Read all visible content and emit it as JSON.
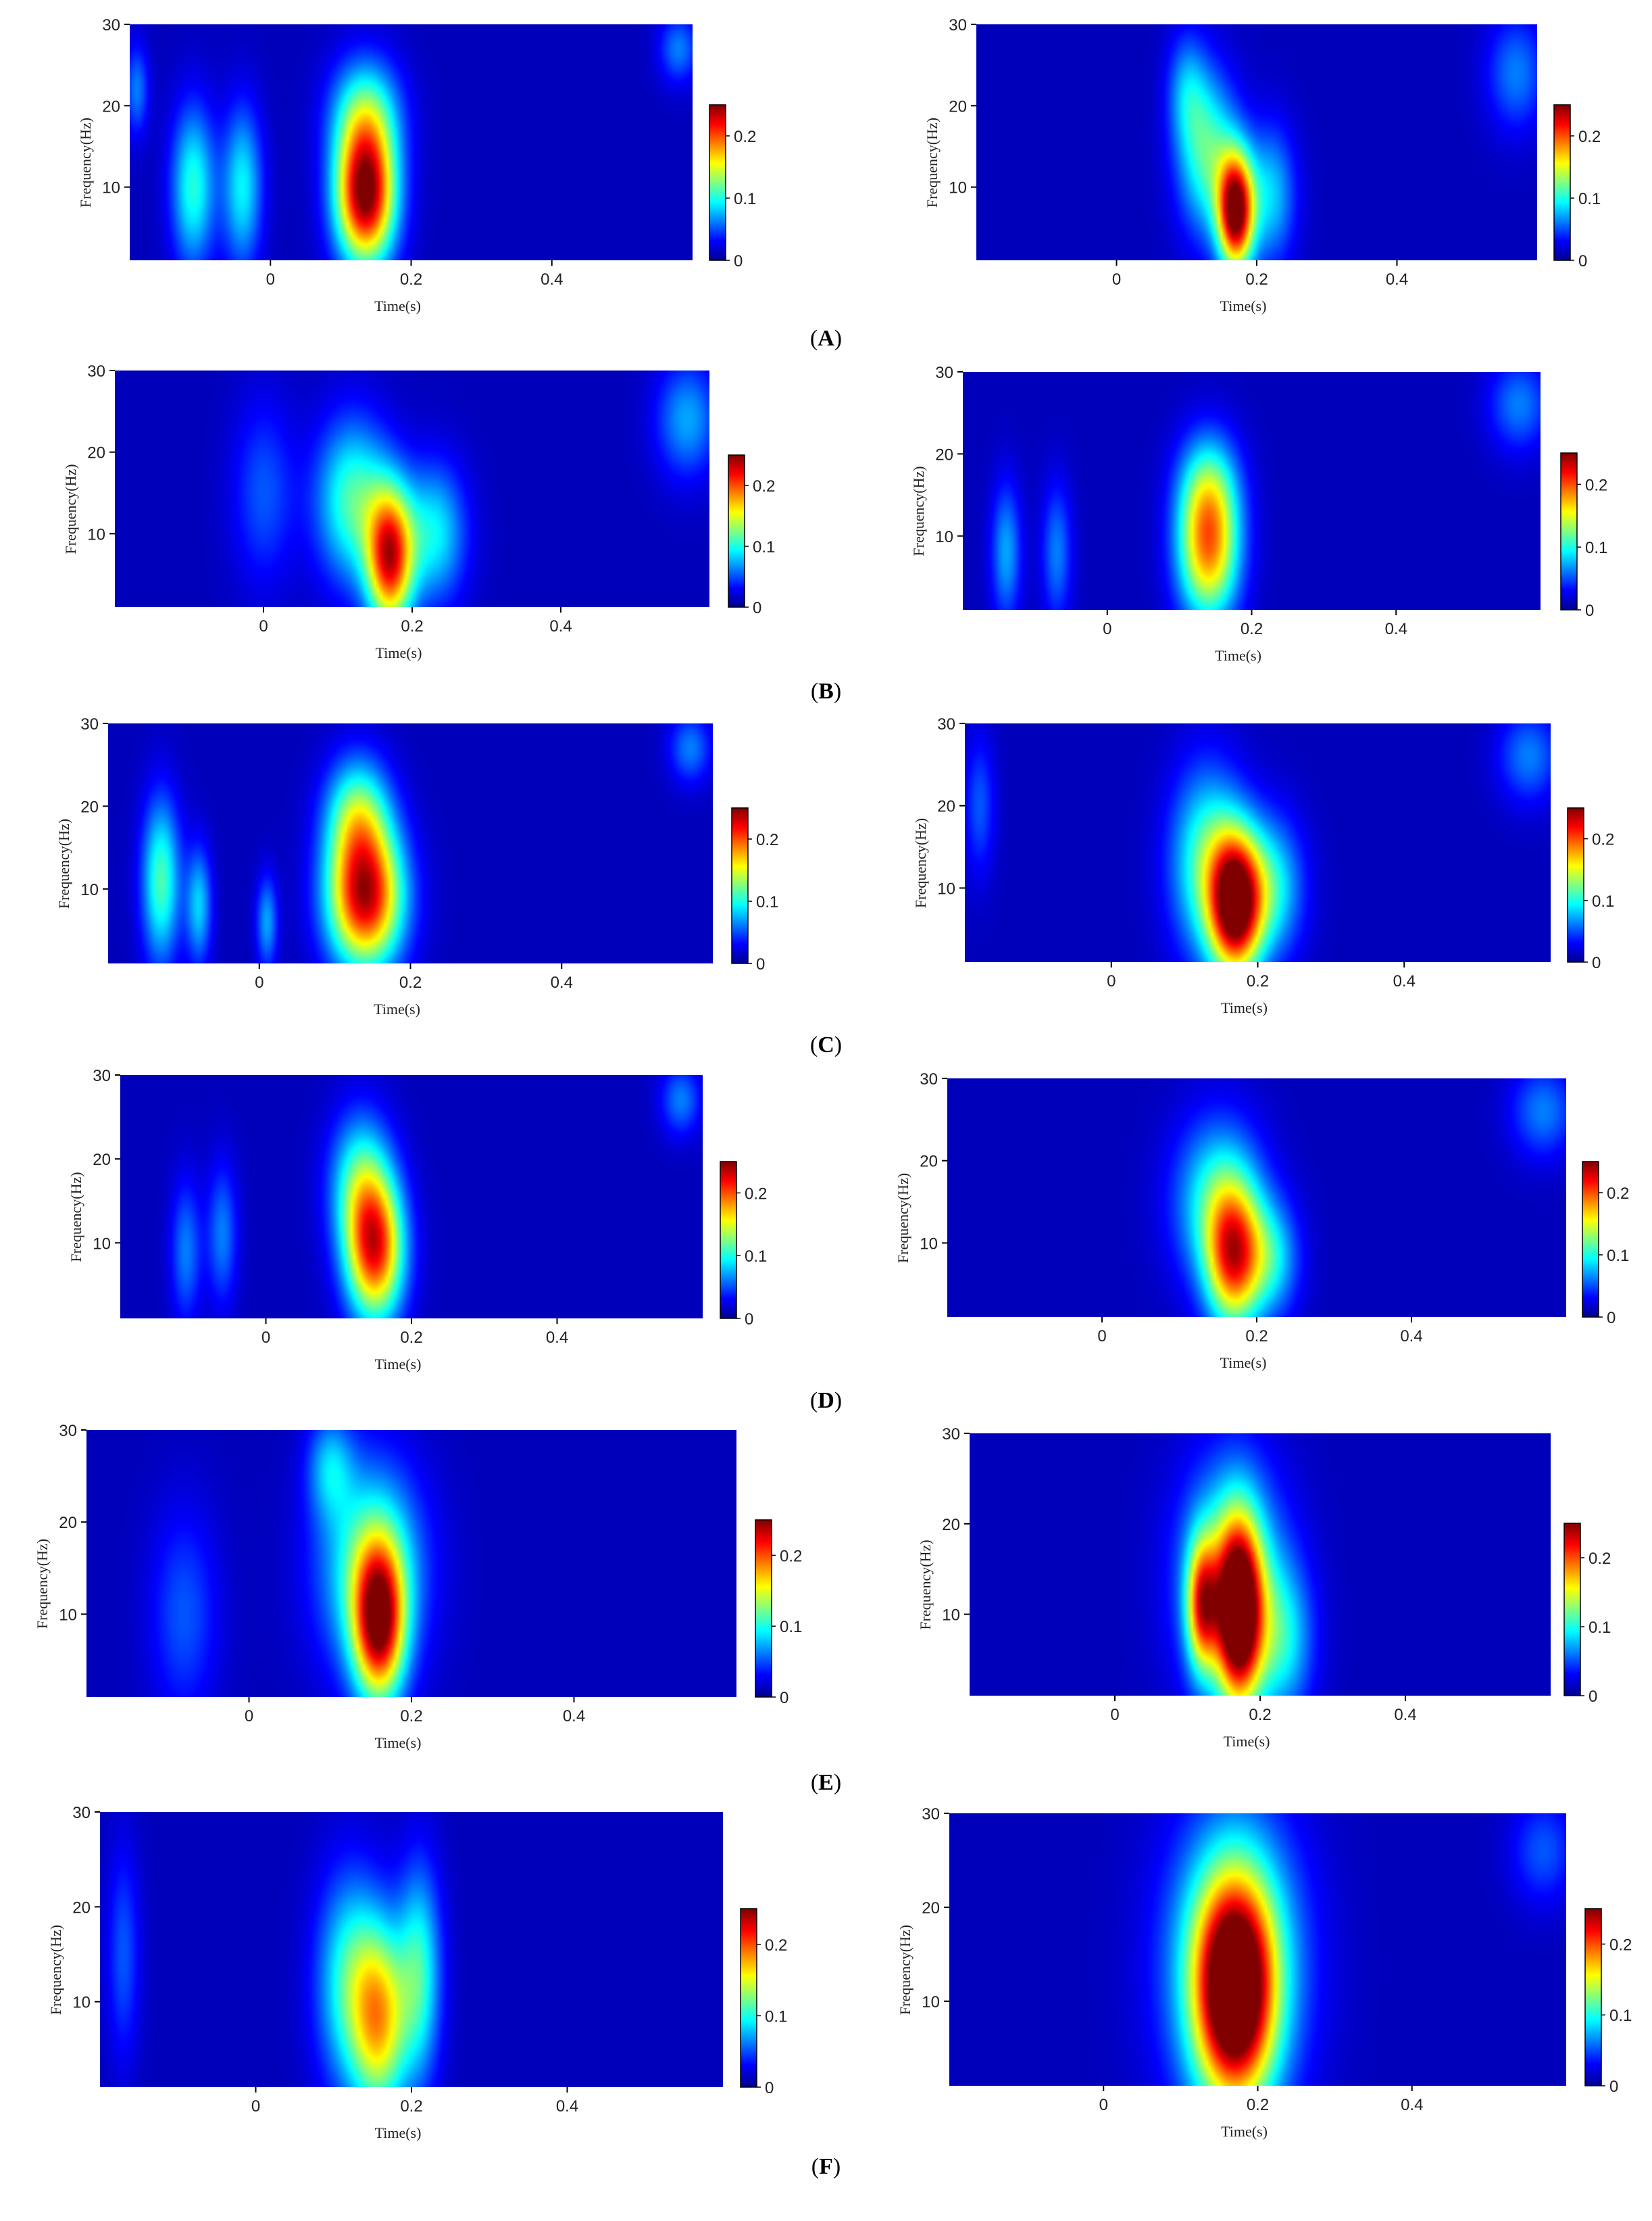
{
  "colors": {
    "background": "#ffffff",
    "colormap": [
      "#00008f",
      "#0000ff",
      "#0080ff",
      "#00ffff",
      "#80ff80",
      "#ffff00",
      "#ff8000",
      "#ff0000",
      "#800000"
    ]
  },
  "chart_data": [
    {
      "panel": "A",
      "side": "left",
      "type": "heatmap",
      "xlabel": "Time(s)",
      "ylabel": "Frequency(Hz)",
      "xticks": [
        "0",
        "0.2",
        "0.4"
      ],
      "yticks": [
        "10",
        "20",
        "30"
      ],
      "xlim": [
        -0.2,
        0.6
      ],
      "ylim": [
        1,
        30
      ],
      "colorbar": {
        "ticks": [
          "0",
          "0.1",
          "0.2"
        ],
        "range": [
          0,
          0.25
        ]
      },
      "blobs": [
        {
          "t": -0.11,
          "f": 10,
          "st": 0.022,
          "sf": 7,
          "v": 0.09
        },
        {
          "t": -0.04,
          "f": 10,
          "st": 0.02,
          "sf": 7,
          "v": 0.08
        },
        {
          "t": 0.135,
          "f": 9,
          "st": 0.03,
          "sf": 6,
          "v": 0.24
        },
        {
          "t": 0.135,
          "f": 19,
          "st": 0.035,
          "sf": 5,
          "v": 0.09
        },
        {
          "t": 0.58,
          "f": 27,
          "st": 0.02,
          "sf": 3,
          "v": 0.05
        },
        {
          "t": -0.19,
          "f": 22,
          "st": 0.012,
          "sf": 4,
          "v": 0.05
        }
      ]
    },
    {
      "panel": "A",
      "side": "right",
      "type": "heatmap",
      "xlabel": "Time(s)",
      "ylabel": "Frequency(Hz)",
      "xticks": [
        "0",
        "0.2",
        "0.4"
      ],
      "yticks": [
        "10",
        "20",
        "30"
      ],
      "xlim": [
        -0.2,
        0.6
      ],
      "ylim": [
        1,
        30
      ],
      "colorbar": {
        "ticks": [
          "0",
          "0.1",
          "0.2"
        ],
        "range": [
          0,
          0.25
        ]
      },
      "blobs": [
        {
          "t": 0.17,
          "f": 7,
          "st": 0.018,
          "sf": 5,
          "v": 0.24
        },
        {
          "t": 0.13,
          "f": 14,
          "st": 0.03,
          "sf": 7,
          "v": 0.1
        },
        {
          "t": 0.22,
          "f": 9,
          "st": 0.025,
          "sf": 6,
          "v": 0.07
        },
        {
          "t": 0.1,
          "f": 22,
          "st": 0.02,
          "sf": 5,
          "v": 0.05
        },
        {
          "t": 0.57,
          "f": 24,
          "st": 0.03,
          "sf": 5,
          "v": 0.05
        }
      ]
    },
    {
      "panel": "B",
      "side": "left",
      "type": "heatmap",
      "xlabel": "Time(s)",
      "ylabel": "Frequency(Hz)",
      "xticks": [
        "0",
        "0.2",
        "0.4"
      ],
      "yticks": [
        "10",
        "20",
        "30"
      ],
      "xlim": [
        -0.2,
        0.6
      ],
      "ylim": [
        1,
        30
      ],
      "colorbar": {
        "ticks": [
          "0",
          "0.1",
          "0.2"
        ],
        "range": [
          0,
          0.25
        ]
      },
      "blobs": [
        {
          "t": 0.17,
          "f": 7,
          "st": 0.022,
          "sf": 6,
          "v": 0.2
        },
        {
          "t": 0.12,
          "f": 14,
          "st": 0.035,
          "sf": 7,
          "v": 0.1
        },
        {
          "t": 0.23,
          "f": 10,
          "st": 0.03,
          "sf": 6,
          "v": 0.08
        },
        {
          "t": 0.0,
          "f": 15,
          "st": 0.03,
          "sf": 8,
          "v": 0.04
        },
        {
          "t": 0.57,
          "f": 24,
          "st": 0.03,
          "sf": 5,
          "v": 0.06
        }
      ]
    },
    {
      "panel": "B",
      "side": "right",
      "type": "heatmap",
      "xlabel": "Time(s)",
      "ylabel": "Frequency(Hz)",
      "xticks": [
        "0",
        "0.2",
        "0.4"
      ],
      "yticks": [
        "10",
        "20",
        "30"
      ],
      "xlim": [
        -0.2,
        0.6
      ],
      "ylim": [
        1,
        30
      ],
      "colorbar": {
        "ticks": [
          "0",
          "0.1",
          "0.2"
        ],
        "range": [
          0,
          0.25
        ]
      },
      "blobs": [
        {
          "t": 0.14,
          "f": 8,
          "st": 0.03,
          "sf": 6,
          "v": 0.16
        },
        {
          "t": 0.14,
          "f": 16,
          "st": 0.03,
          "sf": 5,
          "v": 0.08
        },
        {
          "t": -0.14,
          "f": 8,
          "st": 0.015,
          "sf": 6,
          "v": 0.06
        },
        {
          "t": -0.07,
          "f": 8,
          "st": 0.015,
          "sf": 6,
          "v": 0.05
        },
        {
          "t": 0.57,
          "f": 26,
          "st": 0.03,
          "sf": 4,
          "v": 0.05
        }
      ]
    },
    {
      "panel": "C",
      "side": "left",
      "type": "heatmap",
      "xlabel": "Time(s)",
      "ylabel": "Frequency(Hz)",
      "xticks": [
        "0",
        "0.2",
        "0.4"
      ],
      "yticks": [
        "10",
        "20",
        "30"
      ],
      "xlim": [
        -0.2,
        0.6
      ],
      "ylim": [
        1,
        30
      ],
      "colorbar": {
        "ticks": [
          "0",
          "0.1",
          "0.2"
        ],
        "range": [
          0,
          0.25
        ]
      },
      "blobs": [
        {
          "t": 0.14,
          "f": 9,
          "st": 0.035,
          "sf": 6,
          "v": 0.22
        },
        {
          "t": 0.13,
          "f": 19,
          "st": 0.03,
          "sf": 5,
          "v": 0.1
        },
        {
          "t": -0.13,
          "f": 11,
          "st": 0.018,
          "sf": 7,
          "v": 0.1
        },
        {
          "t": -0.08,
          "f": 8,
          "st": 0.012,
          "sf": 5,
          "v": 0.07
        },
        {
          "t": 0.01,
          "f": 6,
          "st": 0.01,
          "sf": 4,
          "v": 0.06
        },
        {
          "t": 0.57,
          "f": 27,
          "st": 0.02,
          "sf": 3,
          "v": 0.05
        }
      ]
    },
    {
      "panel": "C",
      "side": "right",
      "type": "heatmap",
      "xlabel": "Time(s)",
      "ylabel": "Frequency(Hz)",
      "xticks": [
        "0",
        "0.2",
        "0.4"
      ],
      "yticks": [
        "10",
        "20",
        "30"
      ],
      "xlim": [
        -0.2,
        0.6
      ],
      "ylim": [
        1,
        30
      ],
      "colorbar": {
        "ticks": [
          "0",
          "0.1",
          "0.2"
        ],
        "range": [
          0,
          0.25
        ]
      },
      "blobs": [
        {
          "t": 0.17,
          "f": 8,
          "st": 0.025,
          "sf": 6,
          "v": 0.24
        },
        {
          "t": 0.13,
          "f": 13,
          "st": 0.035,
          "sf": 8,
          "v": 0.1
        },
        {
          "t": 0.22,
          "f": 10,
          "st": 0.03,
          "sf": 6,
          "v": 0.08
        },
        {
          "t": 0.57,
          "f": 26,
          "st": 0.03,
          "sf": 4,
          "v": 0.05
        },
        {
          "t": -0.18,
          "f": 20,
          "st": 0.015,
          "sf": 6,
          "v": 0.04
        }
      ]
    },
    {
      "panel": "D",
      "side": "left",
      "type": "heatmap",
      "xlabel": "Time(s)",
      "ylabel": "Frequency(Hz)",
      "xticks": [
        "0",
        "0.2",
        "0.4"
      ],
      "yticks": [
        "10",
        "20",
        "30"
      ],
      "xlim": [
        -0.2,
        0.6
      ],
      "ylim": [
        1,
        30
      ],
      "colorbar": {
        "ticks": [
          "0",
          "0.1",
          "0.2"
        ],
        "range": [
          0,
          0.25
        ]
      },
      "blobs": [
        {
          "t": 0.15,
          "f": 9,
          "st": 0.028,
          "sf": 6,
          "v": 0.19
        },
        {
          "t": 0.13,
          "f": 17,
          "st": 0.03,
          "sf": 6,
          "v": 0.09
        },
        {
          "t": -0.11,
          "f": 9,
          "st": 0.015,
          "sf": 6,
          "v": 0.05
        },
        {
          "t": -0.06,
          "f": 11,
          "st": 0.015,
          "sf": 6,
          "v": 0.05
        },
        {
          "t": 0.57,
          "f": 27,
          "st": 0.02,
          "sf": 3,
          "v": 0.05
        }
      ]
    },
    {
      "panel": "D",
      "side": "right",
      "type": "heatmap",
      "xlabel": "Time(s)",
      "ylabel": "Frequency(Hz)",
      "xticks": [
        "0",
        "0.2",
        "0.4"
      ],
      "yticks": [
        "10",
        "20",
        "30"
      ],
      "xlim": [
        -0.2,
        0.6
      ],
      "ylim": [
        1,
        30
      ],
      "colorbar": {
        "ticks": [
          "0",
          "0.1",
          "0.2"
        ],
        "range": [
          0,
          0.25
        ]
      },
      "blobs": [
        {
          "t": 0.17,
          "f": 8,
          "st": 0.025,
          "sf": 6,
          "v": 0.17
        },
        {
          "t": 0.15,
          "f": 15,
          "st": 0.04,
          "sf": 7,
          "v": 0.09
        },
        {
          "t": 0.22,
          "f": 8,
          "st": 0.025,
          "sf": 5,
          "v": 0.07
        },
        {
          "t": 0.57,
          "f": 26,
          "st": 0.03,
          "sf": 4,
          "v": 0.05
        }
      ]
    },
    {
      "panel": "E",
      "side": "left",
      "type": "heatmap",
      "xlabel": "Time(s)",
      "ylabel": "Frequency(Hz)",
      "xticks": [
        "0",
        "0.2",
        "0.4"
      ],
      "yticks": [
        "10",
        "20",
        "30"
      ],
      "xlim": [
        -0.2,
        0.6
      ],
      "ylim": [
        1,
        30
      ],
      "colorbar": {
        "ticks": [
          "0",
          "0.1",
          "0.2"
        ],
        "range": [
          0,
          0.25
        ]
      },
      "blobs": [
        {
          "t": 0.16,
          "f": 9,
          "st": 0.022,
          "sf": 6,
          "v": 0.2
        },
        {
          "t": 0.15,
          "f": 15,
          "st": 0.045,
          "sf": 8,
          "v": 0.1
        },
        {
          "t": 0.1,
          "f": 26,
          "st": 0.02,
          "sf": 4,
          "v": 0.06
        },
        {
          "t": -0.08,
          "f": 10,
          "st": 0.03,
          "sf": 8,
          "v": 0.04
        }
      ]
    },
    {
      "panel": "E",
      "side": "right",
      "type": "heatmap",
      "xlabel": "Time(s)",
      "ylabel": "Frequency(Hz)",
      "xticks": [
        "0",
        "0.2",
        "0.4"
      ],
      "yticks": [
        "10",
        "20",
        "30"
      ],
      "xlim": [
        -0.2,
        0.6
      ],
      "ylim": [
        1,
        30
      ],
      "colorbar": {
        "ticks": [
          "0",
          "0.1",
          "0.2"
        ],
        "range": [
          0,
          0.25
        ]
      },
      "blobs": [
        {
          "t": 0.17,
          "f": 10,
          "st": 0.022,
          "sf": 7,
          "v": 0.24
        },
        {
          "t": 0.12,
          "f": 11,
          "st": 0.015,
          "sf": 5,
          "v": 0.15
        },
        {
          "t": 0.16,
          "f": 14,
          "st": 0.05,
          "sf": 9,
          "v": 0.1
        },
        {
          "t": 0.23,
          "f": 7,
          "st": 0.03,
          "sf": 6,
          "v": 0.07
        }
      ]
    },
    {
      "panel": "F",
      "side": "left",
      "type": "heatmap",
      "xlabel": "Time(s)",
      "ylabel": "Frequency(Hz)",
      "xticks": [
        "0",
        "0.2",
        "0.4"
      ],
      "yticks": [
        "10",
        "20",
        "30"
      ],
      "xlim": [
        -0.2,
        0.6
      ],
      "ylim": [
        1,
        30
      ],
      "colorbar": {
        "ticks": [
          "0",
          "0.1",
          "0.2"
        ],
        "range": [
          0,
          0.25
        ]
      },
      "blobs": [
        {
          "t": 0.16,
          "f": 8,
          "st": 0.025,
          "sf": 7,
          "v": 0.14
        },
        {
          "t": 0.12,
          "f": 12,
          "st": 0.03,
          "sf": 8,
          "v": 0.09
        },
        {
          "t": 0.21,
          "f": 13,
          "st": 0.02,
          "sf": 8,
          "v": 0.09
        },
        {
          "t": -0.17,
          "f": 15,
          "st": 0.015,
          "sf": 8,
          "v": 0.04
        }
      ]
    },
    {
      "panel": "F",
      "side": "right",
      "type": "heatmap",
      "xlabel": "Time(s)",
      "ylabel": "Frequency(Hz)",
      "xticks": [
        "0",
        "0.2",
        "0.4"
      ],
      "yticks": [
        "10",
        "20",
        "30"
      ],
      "xlim": [
        -0.2,
        0.6
      ],
      "ylim": [
        1,
        30
      ],
      "colorbar": {
        "ticks": [
          "0",
          "0.1",
          "0.2"
        ],
        "range": [
          0,
          0.25
        ]
      },
      "blobs": [
        {
          "t": 0.17,
          "f": 11,
          "st": 0.035,
          "sf": 8,
          "v": 0.23
        },
        {
          "t": 0.17,
          "f": 14,
          "st": 0.06,
          "sf": 11,
          "v": 0.11
        },
        {
          "t": 0.57,
          "f": 26,
          "st": 0.03,
          "sf": 4,
          "v": 0.04
        }
      ]
    }
  ],
  "panel_labels": [
    "A",
    "B",
    "C",
    "D",
    "E",
    "F"
  ]
}
